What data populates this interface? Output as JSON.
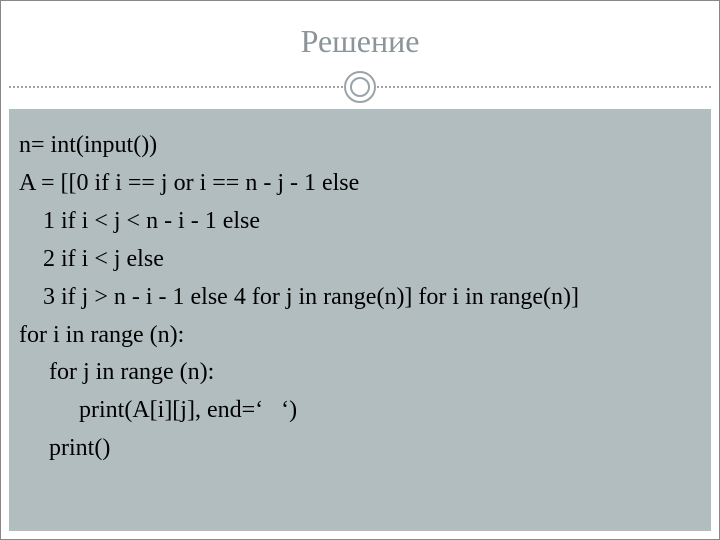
{
  "slide": {
    "title": "Решение",
    "title_color": "#8a9499",
    "title_fontsize": 32,
    "background_color": "#ffffff",
    "content_background": "#b2bdbf",
    "divider_color": "#9aa4a8",
    "code_lines": [
      "n= int(input())",
      "A = [[0 if i == j or i == n - j - 1 else",
      "    1 if i < j < n - i - 1 else",
      "    2 if i < j else",
      "    3 if j > n - i - 1 else 4 for j in range(n)] for i in range(n)]",
      "for i in range (n):",
      "     for j in range (n):",
      "          print(A[i][j], end=‘   ‘)",
      "     print()"
    ],
    "code_color": "#000000",
    "code_fontsize": 24
  }
}
